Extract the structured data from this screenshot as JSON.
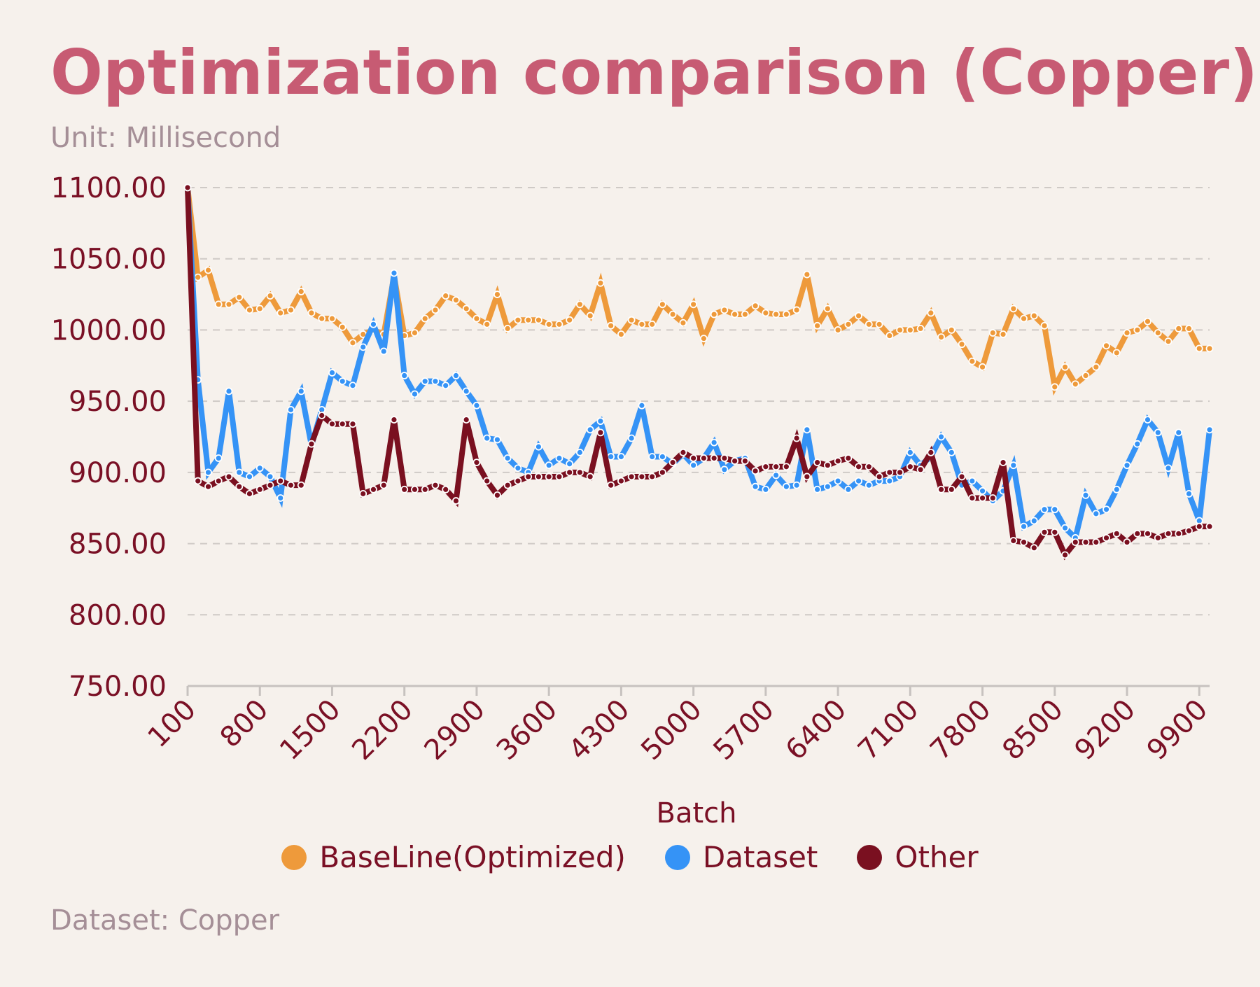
{
  "chart_data": {
    "type": "line",
    "title": "Optimization comparison (Copper)",
    "subtitle": "Unit: Millisecond",
    "footer": "Dataset: Copper",
    "xlabel": "Batch",
    "ylabel": "",
    "ylim": [
      750,
      1100
    ],
    "xlim": [
      100,
      10000
    ],
    "y_ticks": [
      "750.00",
      "800.00",
      "850.00",
      "900.00",
      "950.00",
      "1000.00",
      "1050.00",
      "1100.00"
    ],
    "x_ticks": [
      "100",
      "800",
      "1500",
      "2200",
      "2900",
      "3600",
      "4300",
      "5000",
      "5700",
      "6400",
      "7100",
      "7800",
      "8500",
      "9200",
      "9900"
    ],
    "grid": true,
    "legend_position": "bottom",
    "x": [
      100,
      200,
      300,
      400,
      500,
      600,
      700,
      800,
      900,
      1000,
      1100,
      1200,
      1300,
      1400,
      1500,
      1600,
      1700,
      1800,
      1900,
      2000,
      2100,
      2200,
      2300,
      2400,
      2500,
      2600,
      2700,
      2800,
      2900,
      3000,
      3100,
      3200,
      3300,
      3400,
      3500,
      3600,
      3700,
      3800,
      3900,
      4000,
      4100,
      4200,
      4300,
      4400,
      4500,
      4600,
      4700,
      4800,
      4900,
      5000,
      5100,
      5200,
      5300,
      5400,
      5500,
      5600,
      5700,
      5800,
      5900,
      6000,
      6100,
      6200,
      6300,
      6400,
      6500,
      6600,
      6700,
      6800,
      6900,
      7000,
      7100,
      7200,
      7300,
      7400,
      7500,
      7600,
      7700,
      7800,
      7900,
      8000,
      8100,
      8200,
      8300,
      8400,
      8500,
      8600,
      8700,
      8800,
      8900,
      9000,
      9100,
      9200,
      9300,
      9400,
      9500,
      9600,
      9700,
      9800,
      9900,
      10000
    ],
    "series": [
      {
        "name": "BaseLine(Optimized)",
        "color": "#ee9a3b",
        "values": [
          1100,
          1037,
          1042,
          1018,
          1018,
          1023,
          1014,
          1015,
          1024,
          1012,
          1014,
          1027,
          1012,
          1008,
          1008,
          1002,
          991,
          997,
          1000,
          997,
          1038,
          996,
          998,
          1008,
          1014,
          1024,
          1021,
          1015,
          1008,
          1004,
          1025,
          1001,
          1007,
          1007,
          1007,
          1004,
          1004,
          1007,
          1018,
          1010,
          1033,
          1003,
          997,
          1007,
          1004,
          1004,
          1018,
          1011,
          1005,
          1018,
          994,
          1011,
          1014,
          1011,
          1011,
          1017,
          1012,
          1011,
          1011,
          1014,
          1039,
          1003,
          1015,
          1000,
          1004,
          1010,
          1004,
          1004,
          996,
          1000,
          1000,
          1001,
          1012,
          995,
          1000,
          990,
          978,
          974,
          998,
          997,
          1015,
          1008,
          1010,
          1003,
          960,
          974,
          962,
          968,
          974,
          989,
          984,
          998,
          1000,
          1006,
          998,
          992,
          1001,
          1001,
          987,
          987
        ]
      },
      {
        "name": "Dataset",
        "color": "#3593f6",
        "values": [
          1100,
          965,
          900,
          910,
          957,
          900,
          897,
          903,
          897,
          882,
          944,
          957,
          919,
          944,
          970,
          964,
          961,
          988,
          1004,
          985,
          1040,
          968,
          955,
          964,
          964,
          961,
          968,
          957,
          947,
          924,
          923,
          910,
          903,
          900,
          918,
          905,
          910,
          906,
          914,
          930,
          936,
          911,
          911,
          924,
          947,
          911,
          911,
          906,
          913,
          905,
          910,
          921,
          902,
          908,
          910,
          890,
          888,
          898,
          890,
          891,
          930,
          888,
          890,
          894,
          888,
          894,
          891,
          894,
          894,
          897,
          914,
          905,
          911,
          925,
          914,
          891,
          894,
          887,
          880,
          887,
          905,
          862,
          866,
          874,
          874,
          861,
          854,
          884,
          871,
          874,
          888,
          905,
          920,
          937,
          928,
          903,
          928,
          885,
          866,
          930
        ]
      },
      {
        "name": "Other",
        "color": "#7a1020",
        "values": [
          1100,
          894,
          890,
          894,
          897,
          890,
          885,
          888,
          891,
          894,
          891,
          891,
          920,
          940,
          934,
          934,
          934,
          885,
          888,
          891,
          937,
          888,
          888,
          888,
          891,
          888,
          880,
          937,
          907,
          894,
          884,
          891,
          894,
          897,
          897,
          897,
          897,
          900,
          900,
          897,
          928,
          891,
          894,
          897,
          897,
          897,
          900,
          907,
          914,
          910,
          910,
          910,
          910,
          908,
          908,
          901,
          904,
          904,
          904,
          924,
          897,
          907,
          905,
          908,
          910,
          904,
          904,
          897,
          900,
          900,
          904,
          902,
          914,
          888,
          888,
          897,
          882,
          882,
          882,
          907,
          852,
          851,
          847,
          858,
          858,
          842,
          851,
          851,
          851,
          854,
          857,
          851,
          857,
          857,
          854,
          857,
          857,
          859,
          862,
          862
        ]
      }
    ]
  }
}
